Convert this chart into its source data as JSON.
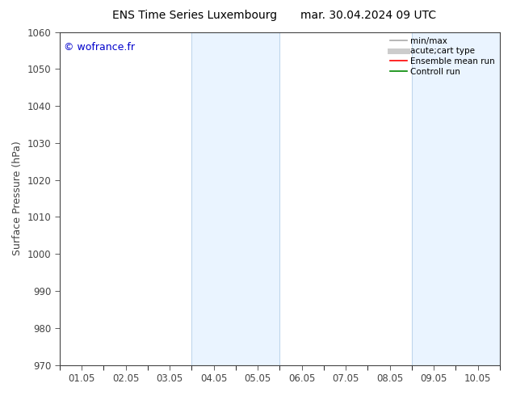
{
  "title_left": "ENS Time Series Luxembourg",
  "title_right": "mar. 30.04.2024 09 UTC",
  "ylabel": "Surface Pressure (hPa)",
  "ylim": [
    970,
    1060
  ],
  "yticks": [
    970,
    980,
    990,
    1000,
    1010,
    1020,
    1030,
    1040,
    1050,
    1060
  ],
  "xlim_start": 0.0,
  "xlim_end": 10.0,
  "xtick_labels": [
    "01.05",
    "02.05",
    "03.05",
    "04.05",
    "05.05",
    "06.05",
    "07.05",
    "08.05",
    "09.05",
    "10.05"
  ],
  "xtick_positions": [
    0.5,
    1.5,
    2.5,
    3.5,
    4.5,
    5.5,
    6.5,
    7.5,
    8.5,
    9.5
  ],
  "shade_bands": [
    {
      "xmin": 3.0,
      "xmax": 5.0,
      "color": "#ddeeff",
      "alpha": 0.6
    },
    {
      "xmin": 8.0,
      "xmax": 10.0,
      "color": "#ddeeff",
      "alpha": 0.6
    }
  ],
  "shade_border_color": "#b8d0e8",
  "copyright_text": "© wofrance.fr",
  "copyright_color": "#0000cc",
  "legend_entries": [
    {
      "label": "min/max",
      "color": "#aaaaaa",
      "lw": 1.2
    },
    {
      "label": "acute;cart type",
      "color": "#cccccc",
      "lw": 5
    },
    {
      "label": "Ensemble mean run",
      "color": "#ff0000",
      "lw": 1.2
    },
    {
      "label": "Controll run",
      "color": "#008800",
      "lw": 1.2
    }
  ],
  "background_color": "#ffffff",
  "tick_color": "#444444",
  "spine_color": "#444444",
  "font_size": 8.5,
  "title_font_size": 10,
  "copyright_font_size": 9
}
